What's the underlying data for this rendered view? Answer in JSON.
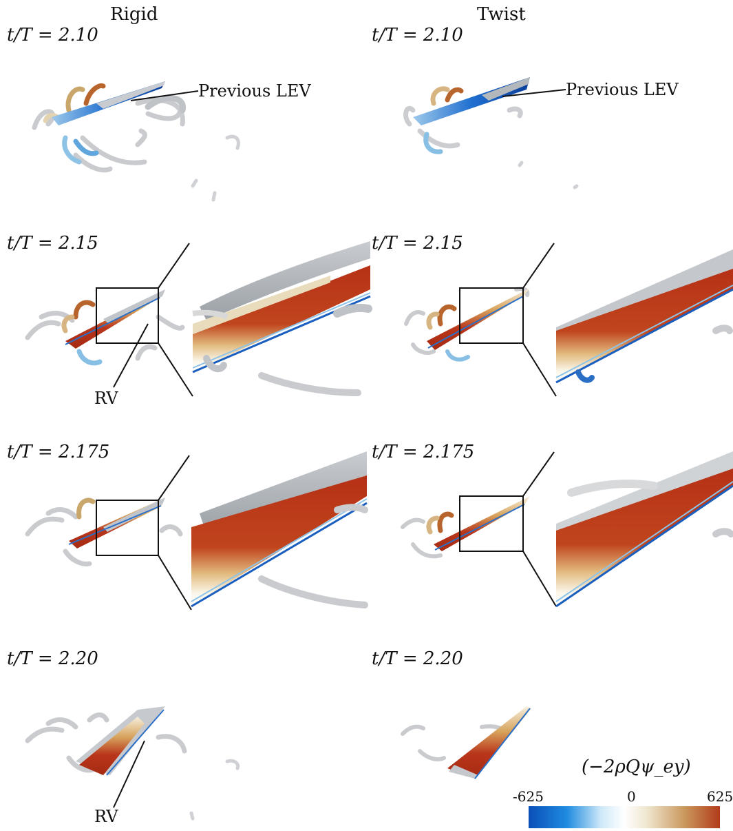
{
  "columns": {
    "left": "Rigid",
    "right": "Twist"
  },
  "time_labels": {
    "left": [
      "t/T = 2.10",
      "t/T = 2.15",
      "t/T = 2.175",
      "t/T = 2.20"
    ],
    "right": [
      "t/T = 2.10",
      "t/T = 2.15",
      "t/T = 2.175",
      "t/T = 2.20"
    ]
  },
  "annotations": {
    "previous_lev": "Previous LEV",
    "rv": "RV"
  },
  "colorbar": {
    "title": "(−2ρQψ_ey)",
    "min_label": "-625",
    "mid_label": "0",
    "max_label": "625",
    "colors": [
      "#0a4fb8",
      "#1f8be0",
      "#bfe3f7",
      "#ffffff",
      "#efe6cf",
      "#c9965a",
      "#b23b1c"
    ]
  }
}
